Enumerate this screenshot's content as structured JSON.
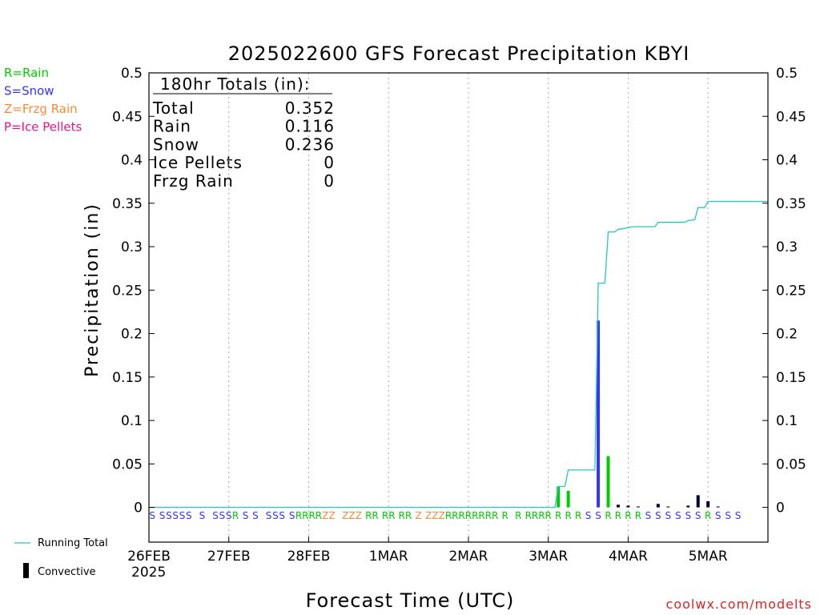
{
  "chart_data": {
    "type": "bar",
    "title": "2025022600 GFS Forecast Precipitation KBYI",
    "ylabel": "Precipitation (in)",
    "xlabel": "Forecast Time (UTC)",
    "ylim": [
      -0.04,
      0.5
    ],
    "yticks": [
      "0",
      "0.05",
      "0.1",
      "0.15",
      "0.2",
      "0.25",
      "0.3",
      "0.35",
      "0.4",
      "0.45",
      "0.5"
    ],
    "ytick_values": [
      0,
      0.05,
      0.1,
      0.15,
      0.2,
      0.25,
      0.3,
      0.35,
      0.4,
      0.45,
      0.5
    ],
    "xlim_hours": [
      0,
      186
    ],
    "x_ticks": [
      {
        "label": "26FEB",
        "hour": 0
      },
      {
        "label": "27FEB",
        "hour": 24
      },
      {
        "label": "28FEB",
        "hour": 48
      },
      {
        "label": "1MAR",
        "hour": 72
      },
      {
        "label": "2MAR",
        "hour": 96
      },
      {
        "label": "3MAR",
        "hour": 120
      },
      {
        "label": "4MAR",
        "hour": 144
      },
      {
        "label": "5MAR",
        "hour": 168
      }
    ],
    "year_label": "2025",
    "grid": "vertical dotted",
    "legend": {
      "precip_types": [
        {
          "label": "R=Rain",
          "color": "#00cc00"
        },
        {
          "label": "S=Snow",
          "color": "#3333ff"
        },
        {
          "label": "Z=Frzg Rain",
          "color": "#ff8833"
        },
        {
          "label": "P=Ice Pellets",
          "color": "#ee1188"
        }
      ],
      "running_total_label": "Running Total",
      "convective_label": "Convective"
    },
    "totals_box": {
      "heading": "180hr Totals (in):",
      "rows": [
        {
          "label": "Total",
          "value": "0.352"
        },
        {
          "label": "Rain",
          "value": "0.116"
        },
        {
          "label": "Snow",
          "value": "0.236"
        },
        {
          "label": "Ice Pellets",
          "value": "0"
        },
        {
          "label": "Frzg Rain",
          "value": "0"
        }
      ]
    },
    "series": [
      {
        "name": "Precipitation",
        "kind": "bars",
        "points": [
          {
            "hour": 123,
            "value": 0.024,
            "type": "R"
          },
          {
            "hour": 126,
            "value": 0.019,
            "type": "R"
          },
          {
            "hour": 135,
            "value": 0.215,
            "type": "S"
          },
          {
            "hour": 138,
            "value": 0.059,
            "type": "R"
          }
        ]
      },
      {
        "name": "Convective",
        "kind": "bars",
        "points": [
          {
            "hour": 141,
            "value": 0.003
          },
          {
            "hour": 144,
            "value": 0.002
          },
          {
            "hour": 147,
            "value": 0.001
          },
          {
            "hour": 153,
            "value": 0.004
          },
          {
            "hour": 156,
            "value": 0.001
          },
          {
            "hour": 162,
            "value": 0.002
          },
          {
            "hour": 165,
            "value": 0.014
          },
          {
            "hour": 168,
            "value": 0.007
          },
          {
            "hour": 171,
            "value": 0.001
          }
        ]
      },
      {
        "name": "Running Total",
        "kind": "line",
        "color": "#22c8c8",
        "points": [
          [
            0,
            0
          ],
          [
            122,
            0
          ],
          [
            123,
            0.024
          ],
          [
            125,
            0.024
          ],
          [
            126,
            0.043
          ],
          [
            134,
            0.043
          ],
          [
            135,
            0.258
          ],
          [
            137,
            0.258
          ],
          [
            138,
            0.317
          ],
          [
            140,
            0.317
          ],
          [
            141,
            0.32
          ],
          [
            143,
            0.321
          ],
          [
            144,
            0.322
          ],
          [
            146,
            0.323
          ],
          [
            152,
            0.323
          ],
          [
            153,
            0.328
          ],
          [
            161,
            0.328
          ],
          [
            162,
            0.33
          ],
          [
            164,
            0.331
          ],
          [
            165,
            0.345
          ],
          [
            167,
            0.345
          ],
          [
            168,
            0.352
          ],
          [
            186,
            0.352
          ]
        ]
      }
    ],
    "precip_type_row": [
      {
        "hour": 1,
        "t": "S"
      },
      {
        "hour": 4,
        "t": "S"
      },
      {
        "hour": 6,
        "t": "S"
      },
      {
        "hour": 8,
        "t": "S"
      },
      {
        "hour": 10,
        "t": "S"
      },
      {
        "hour": 12,
        "t": "S"
      },
      {
        "hour": 16,
        "t": "S"
      },
      {
        "hour": 20,
        "t": "S"
      },
      {
        "hour": 22,
        "t": "S"
      },
      {
        "hour": 24,
        "t": "S"
      },
      {
        "hour": 26,
        "t": "R"
      },
      {
        "hour": 29,
        "t": "S"
      },
      {
        "hour": 32,
        "t": "S"
      },
      {
        "hour": 36,
        "t": "S"
      },
      {
        "hour": 38,
        "t": "S"
      },
      {
        "hour": 40,
        "t": "S"
      },
      {
        "hour": 43,
        "t": "S"
      },
      {
        "hour": 45,
        "t": "R"
      },
      {
        "hour": 47,
        "t": "R"
      },
      {
        "hour": 49,
        "t": "R"
      },
      {
        "hour": 51,
        "t": "R"
      },
      {
        "hour": 53,
        "t": "Z"
      },
      {
        "hour": 55,
        "t": "Z"
      },
      {
        "hour": 59,
        "t": "Z"
      },
      {
        "hour": 61,
        "t": "Z"
      },
      {
        "hour": 63,
        "t": "Z"
      },
      {
        "hour": 66,
        "t": "R"
      },
      {
        "hour": 68,
        "t": "R"
      },
      {
        "hour": 71,
        "t": "R"
      },
      {
        "hour": 73,
        "t": "R"
      },
      {
        "hour": 76,
        "t": "R"
      },
      {
        "hour": 78,
        "t": "R"
      },
      {
        "hour": 81,
        "t": "Z"
      },
      {
        "hour": 84,
        "t": "Z"
      },
      {
        "hour": 86,
        "t": "Z"
      },
      {
        "hour": 88,
        "t": "Z"
      },
      {
        "hour": 90,
        "t": "R"
      },
      {
        "hour": 92,
        "t": "R"
      },
      {
        "hour": 94,
        "t": "R"
      },
      {
        "hour": 96,
        "t": "R"
      },
      {
        "hour": 98,
        "t": "R"
      },
      {
        "hour": 100,
        "t": "R"
      },
      {
        "hour": 102,
        "t": "R"
      },
      {
        "hour": 104,
        "t": "R"
      },
      {
        "hour": 107,
        "t": "R"
      },
      {
        "hour": 111,
        "t": "R"
      },
      {
        "hour": 114,
        "t": "R"
      },
      {
        "hour": 116,
        "t": "R"
      },
      {
        "hour": 118,
        "t": "R"
      },
      {
        "hour": 120,
        "t": "R"
      },
      {
        "hour": 123,
        "t": "R"
      },
      {
        "hour": 126,
        "t": "R"
      },
      {
        "hour": 129,
        "t": "R"
      },
      {
        "hour": 132,
        "t": "S"
      },
      {
        "hour": 135,
        "t": "S"
      },
      {
        "hour": 138,
        "t": "R"
      },
      {
        "hour": 141,
        "t": "R"
      },
      {
        "hour": 144,
        "t": "R"
      },
      {
        "hour": 147,
        "t": "R"
      },
      {
        "hour": 150,
        "t": "S"
      },
      {
        "hour": 153,
        "t": "S"
      },
      {
        "hour": 156,
        "t": "S"
      },
      {
        "hour": 159,
        "t": "S"
      },
      {
        "hour": 162,
        "t": "S"
      },
      {
        "hour": 165,
        "t": "S"
      },
      {
        "hour": 168,
        "t": "R"
      },
      {
        "hour": 171,
        "t": "S"
      },
      {
        "hour": 174,
        "t": "S"
      },
      {
        "hour": 177,
        "t": "S"
      }
    ]
  },
  "footer": {
    "credit": "coolwx.com/modelts"
  }
}
